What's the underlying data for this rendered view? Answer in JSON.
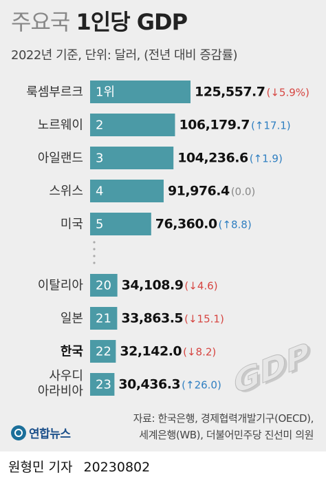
{
  "header": {
    "title_prefix": "주요국",
    "title_main": "1인당 GDP",
    "subtitle": "2022년 기준, 단위: 달러, (전년 대비 증감률)"
  },
  "colors": {
    "bar": "#4b9aa6",
    "up": "#2f7fc1",
    "down": "#d64541",
    "flat": "#888888",
    "background": "#eeeeee"
  },
  "chart_data": {
    "type": "bar",
    "orientation": "horizontal",
    "title": "주요국 1인당 GDP",
    "subtitle": "2022년 기준, 단위: 달러, (전년 대비 증감률)",
    "xlim": [
      0,
      125557.7
    ],
    "categories": [
      "룩셈부르크",
      "노르웨이",
      "아일랜드",
      "스위스",
      "미국",
      "이탈리아",
      "일본",
      "한국",
      "사우디 아라비아"
    ],
    "ranks": [
      "1위",
      "2",
      "3",
      "4",
      "5",
      "20",
      "21",
      "22",
      "23"
    ],
    "values": [
      125557.7,
      106179.7,
      104236.6,
      91976.4,
      76360.0,
      34108.9,
      33863.5,
      32142.0,
      30436.3
    ],
    "value_labels": [
      "125,557.7",
      "106,179.7",
      "104,236.6",
      "91,976.4",
      "76,360.0",
      "34,108.9",
      "33,863.5",
      "32,142.0",
      "30,436.3"
    ],
    "changes": [
      "(↓5.9%)",
      "(↑17.1)",
      "(↑1.9)",
      "(0.0)",
      "(↑8.8)",
      "(↓4.6)",
      "(↓15.1)",
      "(↓8.2)",
      "(↑26.0)"
    ],
    "change_direction": [
      "down",
      "up",
      "up",
      "flat",
      "up",
      "down",
      "down",
      "down",
      "up"
    ],
    "highlight": "한국",
    "gap_after_rank": "5"
  },
  "decoration": {
    "icon": "gdp-3d-letters",
    "text": "GDP"
  },
  "footer": {
    "source_line1": "자료: 한국은행, 경제협력개발기구(OECD),",
    "source_line2": "세계은행(WB), 더불어민주당 진선미 의원",
    "logo_text": "연합뉴스",
    "reporter": "원형민 기자",
    "date": "20230802"
  }
}
